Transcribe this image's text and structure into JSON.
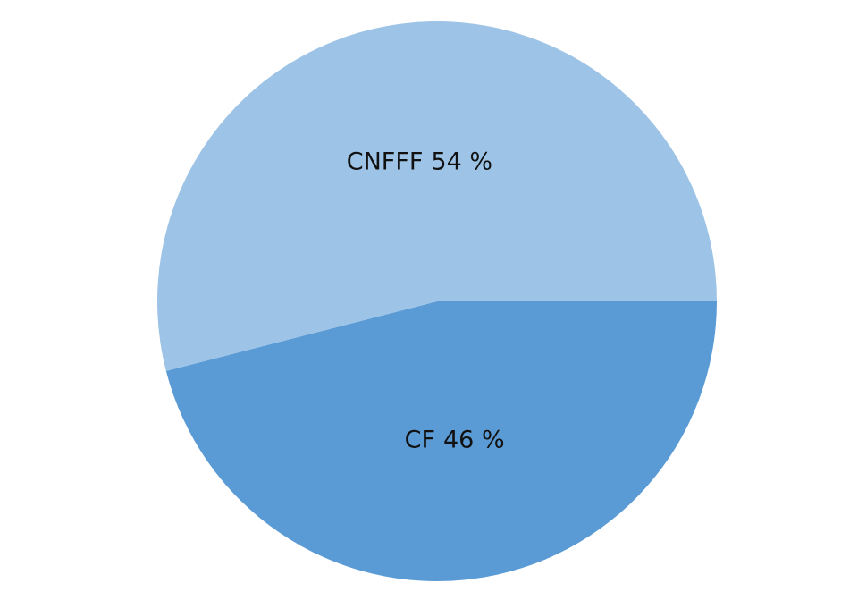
{
  "chart_data": {
    "type": "pie",
    "categories": [
      "CF",
      "CNFFF"
    ],
    "values": [
      46,
      54
    ],
    "value_labels": [
      "46 %",
      "54 %"
    ],
    "colors": [
      "#5b9bd5",
      "#9dc3e6"
    ]
  }
}
